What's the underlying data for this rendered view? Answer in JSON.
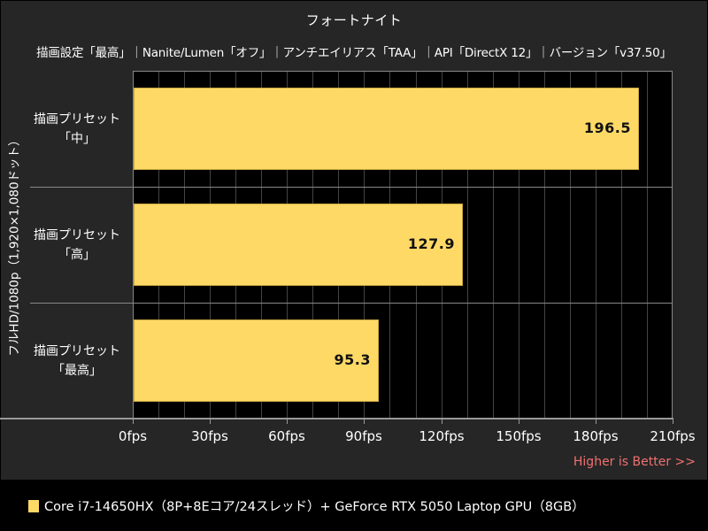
{
  "chart_data": {
    "type": "bar",
    "orientation": "horizontal",
    "title": "フォートナイト",
    "subtitle": "描画設定「最高」｜Nanite/Lumen「オフ」｜アンチエイリアス「TAA」｜API「DirectX 12」｜バージョン「v37.50」",
    "ylabel": "フルHD/1080p（1,920×1,080ドット）",
    "xlabel": "",
    "categories": [
      "描画プリセット「中」",
      "描画プリセット「高」",
      "描画プリセット「最高」"
    ],
    "category_lines": [
      [
        "描画プリセット",
        "「中」"
      ],
      [
        "描画プリセット",
        "「高」"
      ],
      [
        "描画プリセット",
        "「最高」"
      ]
    ],
    "series": [
      {
        "name": "Core i7-14650HX（8P+8Eコア/24スレッド）+ GeForce RTX 5050 Laptop GPU（8GB）",
        "color": "#ffd966",
        "values": [
          196.5,
          127.9,
          95.3
        ],
        "value_labels": [
          "196.5",
          "127.9",
          "95.3"
        ]
      }
    ],
    "xlim": [
      0,
      210
    ],
    "xticks": [
      0,
      30,
      60,
      90,
      120,
      150,
      180,
      210
    ],
    "xtick_labels": [
      "0fps",
      "30fps",
      "60fps",
      "90fps",
      "120fps",
      "150fps",
      "180fps",
      "210fps"
    ],
    "minor_grid_step": 10,
    "grid": true,
    "legend_position": "bottom",
    "annotation": "Higher is Better >>"
  },
  "header": {
    "title": "フォートナイト",
    "subtitle": "描画設定「最高」｜Nanite/Lumen「オフ」｜アンチエイリアス「TAA」｜API「DirectX 12」｜バージョン「v37.50」"
  },
  "axis": {
    "ylabel": "フルHD/1080p（1,920×1,080ドット）"
  },
  "footer": {
    "higher_is_better": "Higher is Better >>",
    "legend_label": "Core i7-14650HX（8P+8Eコア/24スレッド）+ GeForce RTX 5050 Laptop GPU（8GB）"
  },
  "colors": {
    "bar": "#ffd966",
    "panel_bg": "#262626",
    "plot_bg": "#000000",
    "accent_text": "#f07070"
  }
}
